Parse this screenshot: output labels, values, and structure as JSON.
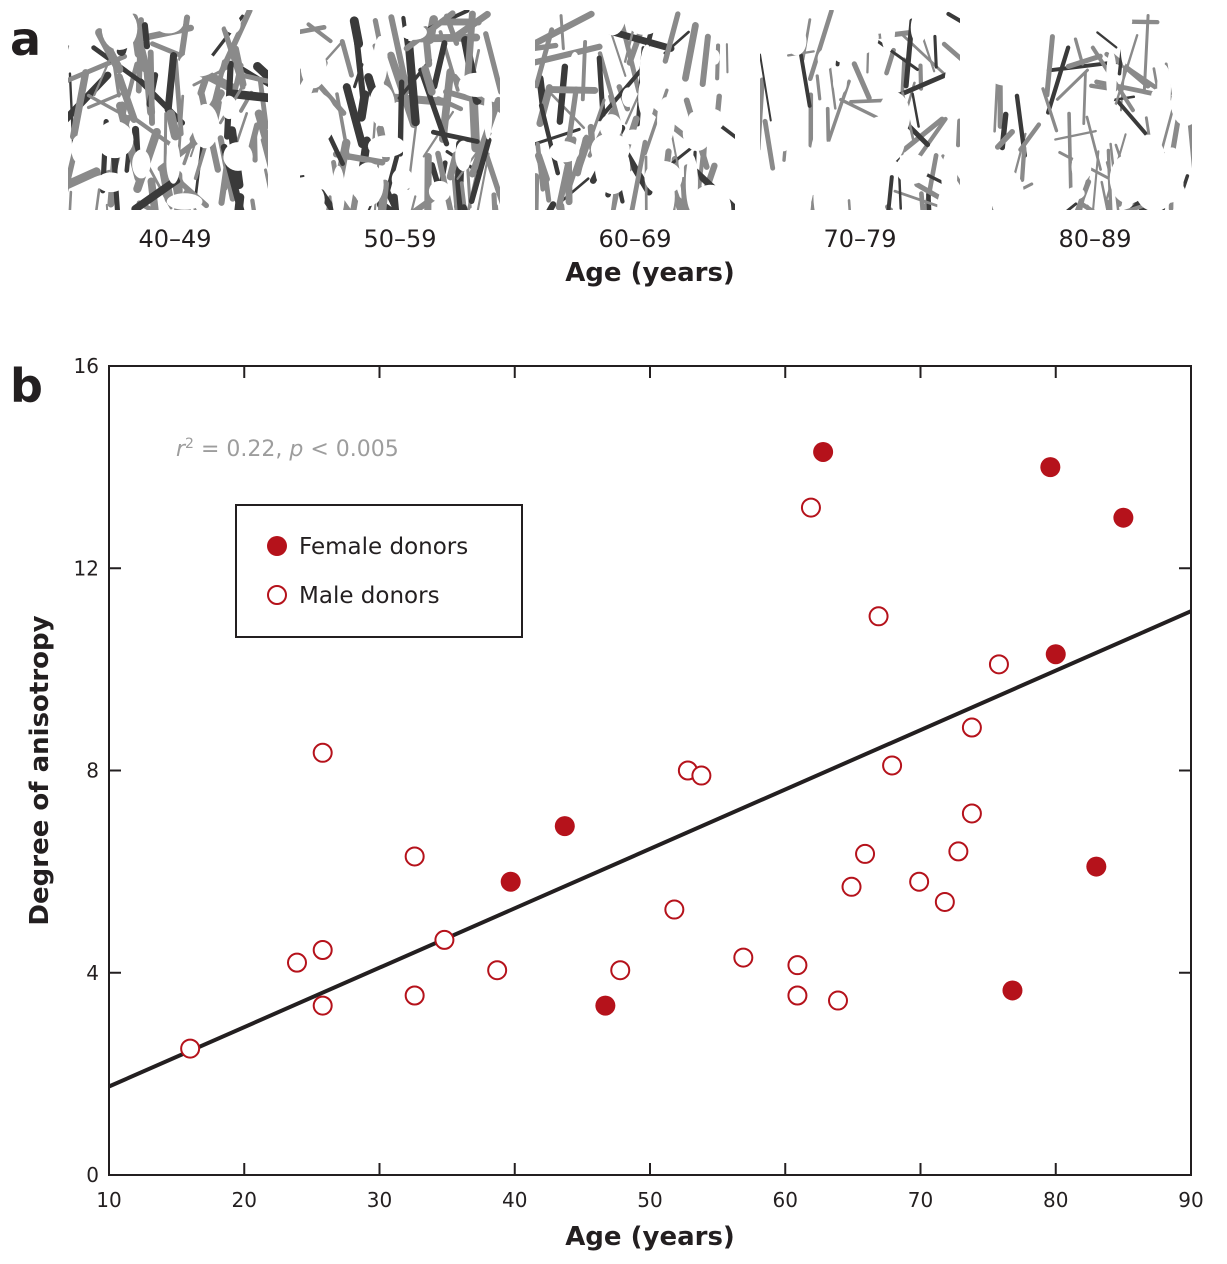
{
  "panel_a": {
    "letter": "a",
    "axis_label": "Age (years)",
    "images": [
      {
        "label": "40–49",
        "density": 0.62
      },
      {
        "label": "50–59",
        "density": 0.58
      },
      {
        "label": "60–69",
        "density": 0.44
      },
      {
        "label": "70–79",
        "density": 0.27
      },
      {
        "label": "80–89",
        "density": 0.3
      }
    ]
  },
  "panel_b": {
    "letter": "b"
  },
  "chart_data": {
    "type": "scatter",
    "xlabel": "Age (years)",
    "ylabel": "Degree of anisotropy",
    "xlim": [
      10,
      90
    ],
    "ylim": [
      0,
      16
    ],
    "xticks": [
      10,
      20,
      30,
      40,
      50,
      60,
      70,
      80,
      90
    ],
    "yticks": [
      0,
      4,
      8,
      12,
      16
    ],
    "grid": false,
    "legend_position": "upper-left",
    "annotation": {
      "r2_symbol": "r",
      "r2_exp": "2",
      "r2_value": " = 0.22, ",
      "p_symbol": "p",
      "p_value": " < 0.005"
    },
    "series": [
      {
        "name": "Female donors",
        "marker": "filled-circle",
        "color": "#b5121b",
        "x": [
          39.7,
          43.7,
          46.7,
          62.8,
          76.8,
          79.6,
          80.0,
          83.0,
          85.0
        ],
        "y": [
          5.8,
          6.9,
          3.35,
          14.3,
          3.65,
          14.0,
          10.3,
          6.1,
          13.0
        ]
      },
      {
        "name": "Male donors",
        "marker": "open-circle",
        "color": "#b5121b",
        "x": [
          16.0,
          23.9,
          25.8,
          25.8,
          25.8,
          32.6,
          32.6,
          34.8,
          38.7,
          47.8,
          51.8,
          52.8,
          53.8,
          56.9,
          60.9,
          60.9,
          61.9,
          63.9,
          64.9,
          65.9,
          66.9,
          67.9,
          69.9,
          71.8,
          72.8,
          73.8,
          73.8,
          75.8
        ],
        "y": [
          2.5,
          4.2,
          8.35,
          4.45,
          3.35,
          6.3,
          3.55,
          4.65,
          4.05,
          4.05,
          5.25,
          8.0,
          7.9,
          4.3,
          4.15,
          3.55,
          13.2,
          3.45,
          5.7,
          6.35,
          11.05,
          8.1,
          5.8,
          5.4,
          6.4,
          8.85,
          7.15,
          10.1
        ]
      }
    ],
    "fit_line": {
      "x": [
        10,
        90
      ],
      "y": [
        1.75,
        11.15
      ],
      "color": "#231f20"
    }
  }
}
